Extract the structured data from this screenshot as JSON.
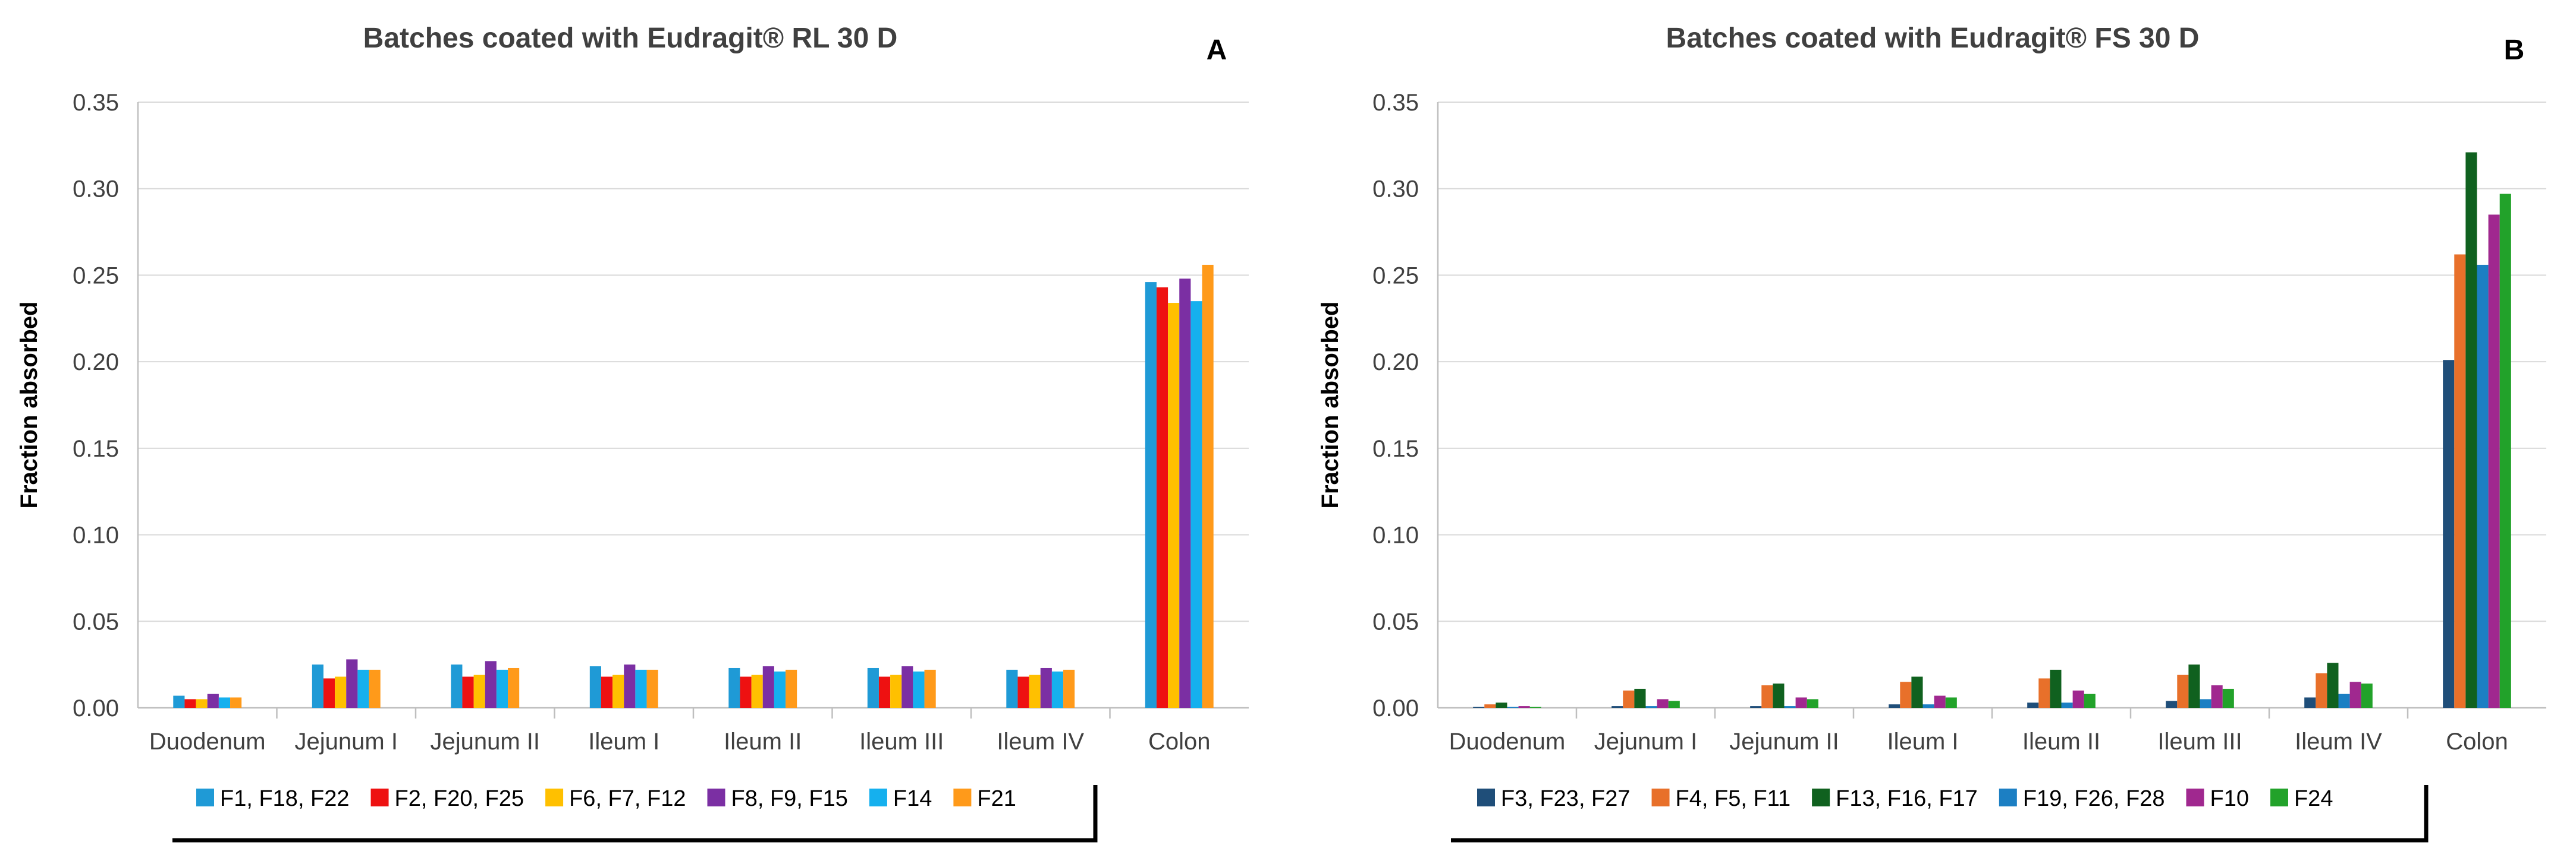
{
  "chart_data": [
    {
      "type": "bar",
      "title": "Batches coated with Eudragit® RL 30 D",
      "panel_label": "A",
      "ylabel": "Fraction absorbed",
      "xlabel": "",
      "ylim": [
        0,
        0.35
      ],
      "yticks": [
        "0.00",
        "0.05",
        "0.10",
        "0.15",
        "0.20",
        "0.25",
        "0.30",
        "0.35"
      ],
      "grid": true,
      "legend_position": "bottom",
      "categories": [
        "Duodenum",
        "Jejunum I",
        "Jejunum II",
        "Ileum I",
        "Ileum II",
        "Ileum III",
        "Ileum IV",
        "Colon"
      ],
      "series": [
        {
          "name": "F1, F18, F22",
          "color": "#1f9ad6",
          "values": [
            0.007,
            0.025,
            0.025,
            0.024,
            0.023,
            0.023,
            0.022,
            0.246
          ]
        },
        {
          "name": "F2, F20, F25",
          "color": "#ee1111",
          "values": [
            0.005,
            0.017,
            0.018,
            0.018,
            0.018,
            0.018,
            0.018,
            0.243
          ]
        },
        {
          "name": "F6, F7,  F12",
          "color": "#ffc000",
          "values": [
            0.005,
            0.018,
            0.019,
            0.019,
            0.019,
            0.019,
            0.019,
            0.234
          ]
        },
        {
          "name": "F8, F9,  F15",
          "color": "#7b2fa3",
          "values": [
            0.008,
            0.028,
            0.027,
            0.025,
            0.024,
            0.024,
            0.023,
            0.248
          ]
        },
        {
          "name": "F14",
          "color": "#15b0ee",
          "values": [
            0.006,
            0.022,
            0.022,
            0.022,
            0.021,
            0.021,
            0.021,
            0.235
          ]
        },
        {
          "name": "F21",
          "color": "#ff9a1a",
          "values": [
            0.006,
            0.022,
            0.023,
            0.022,
            0.022,
            0.022,
            0.022,
            0.256
          ]
        }
      ]
    },
    {
      "type": "bar",
      "title": "Batches coated with Eudragit® FS 30 D",
      "panel_label": "B",
      "ylabel": "Fraction absorbed",
      "xlabel": "",
      "ylim": [
        0,
        0.35
      ],
      "yticks": [
        "0.00",
        "0.05",
        "0.10",
        "0.15",
        "0.20",
        "0.25",
        "0.30",
        "0.35"
      ],
      "grid": true,
      "legend_position": "bottom",
      "categories": [
        "Duodenum",
        "Jejunum I",
        "Jejunum II",
        "Ileum I",
        "Ileum II",
        "Ileum III",
        "Ileum IV",
        "Colon"
      ],
      "series": [
        {
          "name": "F3, F23, F27",
          "color": "#1f4e79",
          "values": [
            0.0005,
            0.001,
            0.001,
            0.002,
            0.003,
            0.004,
            0.006,
            0.201
          ]
        },
        {
          "name": "F4, F5, F11",
          "color": "#e8702a",
          "values": [
            0.002,
            0.01,
            0.013,
            0.015,
            0.017,
            0.019,
            0.02,
            0.262
          ]
        },
        {
          "name": "F13, F16,  F17",
          "color": "#10611f",
          "values": [
            0.003,
            0.011,
            0.014,
            0.018,
            0.022,
            0.025,
            0.026,
            0.321
          ]
        },
        {
          "name": "F19, F26,  F28",
          "color": "#1c7fc3",
          "values": [
            0.0005,
            0.001,
            0.001,
            0.002,
            0.003,
            0.005,
            0.008,
            0.256
          ]
        },
        {
          "name": "F10",
          "color": "#a0288f",
          "values": [
            0.001,
            0.005,
            0.006,
            0.007,
            0.01,
            0.013,
            0.015,
            0.285
          ]
        },
        {
          "name": "F24",
          "color": "#22a22a",
          "values": [
            0.0005,
            0.004,
            0.005,
            0.006,
            0.008,
            0.011,
            0.014,
            0.297
          ]
        }
      ]
    }
  ]
}
